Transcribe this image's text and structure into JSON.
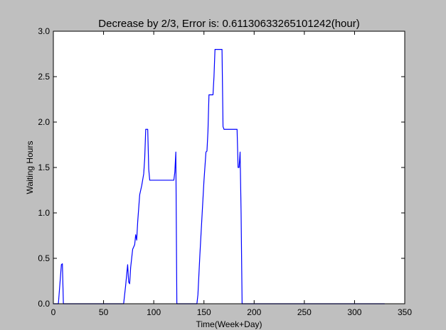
{
  "chart_data": {
    "type": "line",
    "title": "Decrease by 2/3, Error is: 0.61130633265101242(hour)",
    "xlabel": "Time(Week+Day)",
    "ylabel": "Waiting Hours",
    "xlim": [
      0,
      350
    ],
    "ylim": [
      0,
      3.0
    ],
    "x_ticks": [
      0,
      50,
      100,
      150,
      200,
      250,
      300,
      350
    ],
    "x_tick_labels": [
      "0",
      "50",
      "100",
      "150",
      "200",
      "250",
      "300",
      "350"
    ],
    "y_ticks": [
      0,
      0.5,
      1.0,
      1.5,
      2.0,
      2.5,
      3.0
    ],
    "y_tick_labels": [
      "0.0",
      "0.5",
      "1.0",
      "1.5",
      "2.0",
      "2.5",
      "3.0"
    ],
    "grid": false,
    "colors": {
      "line": "#0000ff",
      "background": "#ffffff",
      "figure": "#bfbfbf"
    },
    "series": [
      {
        "x": [
          0,
          5,
          8,
          9,
          10,
          70,
          72,
          74,
          75,
          76,
          77,
          79,
          81,
          82,
          83,
          84,
          86,
          88,
          90,
          91,
          92,
          93,
          94,
          95,
          96,
          120,
          121,
          122,
          123,
          143,
          144,
          146,
          148,
          150,
          152,
          153,
          154,
          155,
          156,
          158,
          159,
          160,
          161,
          162,
          164,
          165,
          166,
          168,
          169,
          170,
          183,
          184,
          185,
          186,
          187,
          188,
          330
        ],
        "y": [
          0,
          0,
          0.43,
          0.44,
          0,
          0,
          0.2,
          0.43,
          0.24,
          0.22,
          0.4,
          0.6,
          0.65,
          0.76,
          0.7,
          0.9,
          1.2,
          1.3,
          1.43,
          1.6,
          1.92,
          1.92,
          1.92,
          1.48,
          1.36,
          1.36,
          1.45,
          1.67,
          0,
          0,
          0.1,
          0.55,
          0.95,
          1.35,
          1.67,
          1.68,
          1.9,
          2.3,
          2.3,
          2.3,
          2.3,
          2.5,
          2.8,
          2.8,
          2.8,
          2.8,
          2.8,
          2.8,
          1.95,
          1.92,
          1.92,
          1.5,
          1.5,
          1.67,
          1.0,
          0,
          0
        ]
      }
    ]
  }
}
